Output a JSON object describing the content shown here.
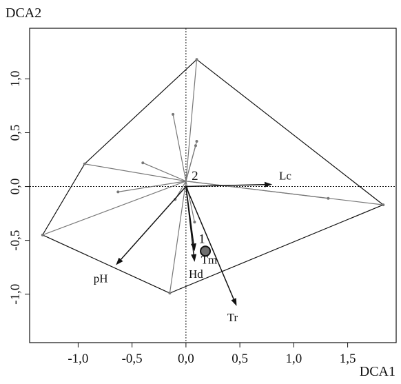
{
  "chart_data": {
    "type": "scatter",
    "title": "",
    "xlabel": "DCA1",
    "ylabel": "DCA2",
    "xlim": [
      -1.45,
      1.95
    ],
    "ylim": [
      -1.45,
      1.47
    ],
    "x_ticks": [
      "-1,0",
      "-0,5",
      "0,0",
      "0,5",
      "1,0",
      "1,5"
    ],
    "y_ticks": [
      "-1,0",
      "-0,5",
      "0,0",
      "0,5",
      "1,0"
    ],
    "x_tick_values": [
      -1.0,
      -0.5,
      0.0,
      0.5,
      1.0,
      1.5
    ],
    "y_tick_values": [
      -1.0,
      -0.5,
      0.0,
      0.5,
      1.0
    ],
    "grid": false,
    "reference_lines": {
      "x": 0,
      "y": 0,
      "style": "dotted"
    },
    "centroids": [
      {
        "label": "2",
        "x": 0.0,
        "y": 0.05
      },
      {
        "label": "1",
        "x": 0.18,
        "y": -0.6
      }
    ],
    "hull": [
      {
        "x": 0.1,
        "y": 1.18
      },
      {
        "x": 1.83,
        "y": -0.17
      },
      {
        "x": -0.15,
        "y": -0.99
      },
      {
        "x": -1.33,
        "y": -0.45
      },
      {
        "x": -0.94,
        "y": 0.21
      }
    ],
    "sites": [
      {
        "x": 0.1,
        "y": 1.18
      },
      {
        "x": 1.83,
        "y": -0.17
      },
      {
        "x": 1.32,
        "y": -0.11
      },
      {
        "x": -0.15,
        "y": -0.99
      },
      {
        "x": -1.33,
        "y": -0.45
      },
      {
        "x": -0.94,
        "y": 0.21
      },
      {
        "x": -0.4,
        "y": 0.22
      },
      {
        "x": -0.63,
        "y": -0.05
      },
      {
        "x": -0.1,
        "y": -0.12
      },
      {
        "x": 0.1,
        "y": 0.42
      },
      {
        "x": 0.09,
        "y": 0.38
      },
      {
        "x": 0.08,
        "y": -0.33
      },
      {
        "x": -0.12,
        "y": 0.67
      }
    ],
    "vectors": [
      {
        "label": "Lc",
        "x": 0.8,
        "y": 0.02
      },
      {
        "label": "pH",
        "x": -0.65,
        "y": -0.73
      },
      {
        "label": "Hd",
        "x": 0.08,
        "y": -0.7
      },
      {
        "label": "Tm",
        "x": 0.08,
        "y": -0.6
      },
      {
        "label": "Tr",
        "x": 0.47,
        "y": -1.11
      }
    ]
  }
}
